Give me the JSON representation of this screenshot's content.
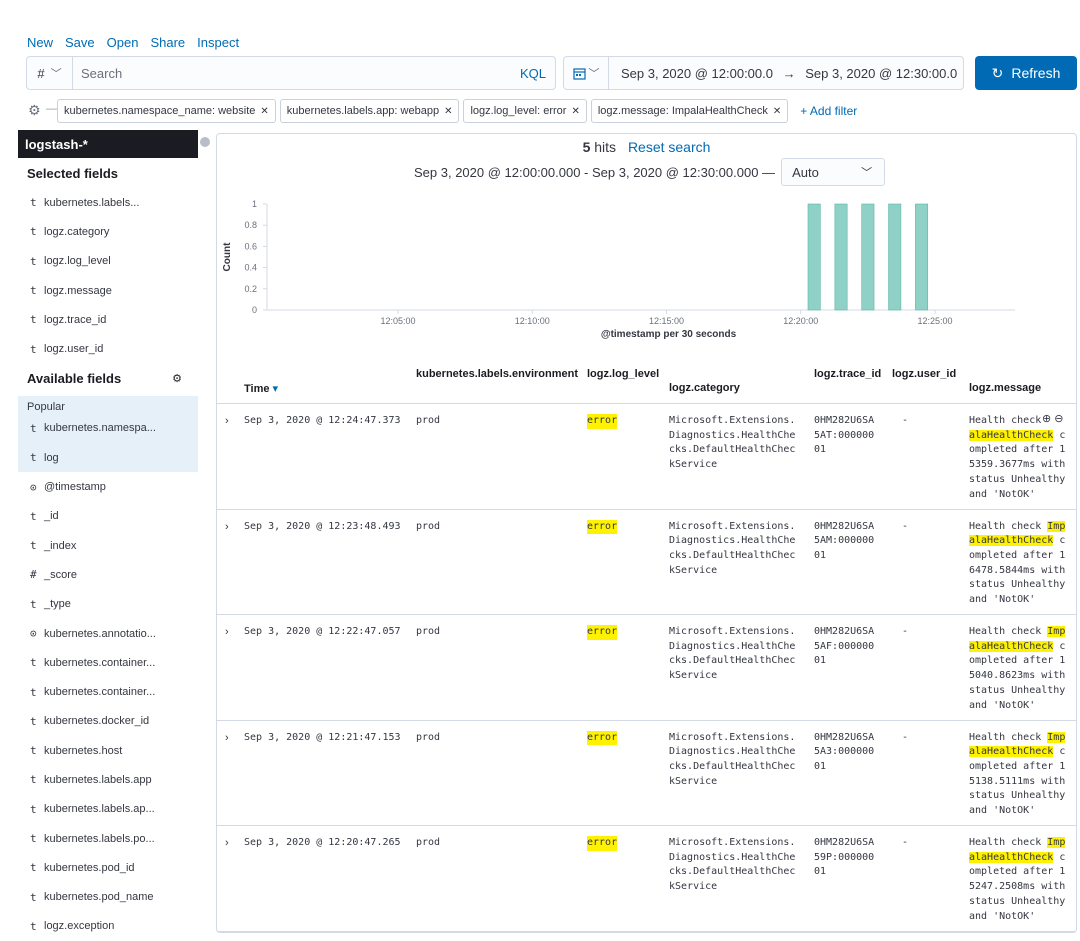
{
  "topnav": [
    "New",
    "Save",
    "Open",
    "Share",
    "Inspect"
  ],
  "search": {
    "lang_symbol": "#",
    "placeholder": "Search",
    "kql": "KQL"
  },
  "date_range": {
    "start": "Sep 3, 2020 @ 12:00:00.0",
    "arrow": "→",
    "end": "Sep 3, 2020 @ 12:30:00.0"
  },
  "refresh_label": "Refresh",
  "filters": [
    "kubernetes.namespace_name: website",
    "kubernetes.labels.app: webapp",
    "logz.log_level: error",
    "logz.message: ImpalaHealthCheck"
  ],
  "add_filter": "+ Add filter",
  "sidebar": {
    "index_pattern": "logstash-*",
    "selected_title": "Selected fields",
    "selected": [
      {
        "type": "t",
        "name": "kubernetes.labels..."
      },
      {
        "type": "t",
        "name": "logz.category"
      },
      {
        "type": "t",
        "name": "logz.log_level"
      },
      {
        "type": "t",
        "name": "logz.message"
      },
      {
        "type": "t",
        "name": "logz.trace_id"
      },
      {
        "type": "t",
        "name": "logz.user_id"
      }
    ],
    "available_title": "Available fields",
    "popular_label": "Popular",
    "popular": [
      {
        "type": "t",
        "name": "kubernetes.namespa..."
      },
      {
        "type": "t",
        "name": "log"
      }
    ],
    "available": [
      {
        "type": "⊙",
        "name": "@timestamp"
      },
      {
        "type": "t",
        "name": "_id"
      },
      {
        "type": "t",
        "name": "_index"
      },
      {
        "type": "#",
        "name": "_score"
      },
      {
        "type": "t",
        "name": "_type"
      },
      {
        "type": "⊙",
        "name": "kubernetes.annotatio..."
      },
      {
        "type": "t",
        "name": "kubernetes.container..."
      },
      {
        "type": "t",
        "name": "kubernetes.container..."
      },
      {
        "type": "t",
        "name": "kubernetes.docker_id"
      },
      {
        "type": "t",
        "name": "kubernetes.host"
      },
      {
        "type": "t",
        "name": "kubernetes.labels.app"
      },
      {
        "type": "t",
        "name": "kubernetes.labels.ap..."
      },
      {
        "type": "t",
        "name": "kubernetes.labels.po..."
      },
      {
        "type": "t",
        "name": "kubernetes.pod_id"
      },
      {
        "type": "t",
        "name": "kubernetes.pod_name"
      },
      {
        "type": "t",
        "name": "logz.exception"
      }
    ]
  },
  "hits": {
    "count": "5",
    "label": "hits",
    "reset": "Reset search"
  },
  "interval": {
    "range_text": "Sep 3, 2020 @ 12:00:00.000 - Sep 3, 2020 @ 12:30:00.000 —",
    "selected": "Auto"
  },
  "chart_data": {
    "type": "bar",
    "ylabel": "Count",
    "xlabel": "@timestamp per 30 seconds",
    "y_ticks": [
      "0",
      "0.2",
      "0.4",
      "0.6",
      "0.8",
      "1"
    ],
    "ylim": [
      0,
      1
    ],
    "x_ticks": [
      "12:05:00",
      "12:10:00",
      "12:15:00",
      "12:20:00",
      "12:25:00"
    ],
    "x_range_minutes": [
      0,
      30
    ],
    "bar_color": "#8fd1c6",
    "points": [
      {
        "minute": 20.5,
        "value": 1
      },
      {
        "minute": 21.5,
        "value": 1
      },
      {
        "minute": 22.5,
        "value": 1
      },
      {
        "minute": 23.5,
        "value": 1
      },
      {
        "minute": 24.5,
        "value": 1
      }
    ]
  },
  "table": {
    "headers": {
      "time": "Time",
      "env": "kubernetes.labels.environment",
      "level": "logz.log_level",
      "category": "logz.category",
      "trace": "logz.trace_id",
      "user": "logz.user_id",
      "message": "logz.message"
    },
    "rows": [
      {
        "time": "Sep 3, 2020 @ 12:24:47.373",
        "env": "prod",
        "level": "error",
        "category": "Microsoft.Extensions.\nDiagnostics.HealthChe\ncks.DefaultHealthChec\nkService",
        "trace": "0HM282U6SA\n5AT:000000\n01",
        "user": "-",
        "msg_pre": "Health check ",
        "msg_hl1": "",
        "msg_hl2": "alaHealthCheck",
        "msg_post": " c\nompleted after 1\n5359.3677ms with\nstatus Unhealthy\nand 'NotOK'"
      },
      {
        "time": "Sep 3, 2020 @ 12:23:48.493",
        "env": "prod",
        "level": "error",
        "category": "Microsoft.Extensions.\nDiagnostics.HealthChe\ncks.DefaultHealthChec\nkService",
        "trace": "0HM282U6SA\n5AM:000000\n01",
        "user": "-",
        "msg_pre": "Health check ",
        "msg_hl1": "Imp",
        "msg_hl2": "alaHealthCheck",
        "msg_post": " c\nompleted after 1\n6478.5844ms with\nstatus Unhealthy\nand 'NotOK'"
      },
      {
        "time": "Sep 3, 2020 @ 12:22:47.057",
        "env": "prod",
        "level": "error",
        "category": "Microsoft.Extensions.\nDiagnostics.HealthChe\ncks.DefaultHealthChec\nkService",
        "trace": "0HM282U6SA\n5AF:000000\n01",
        "user": "-",
        "msg_pre": "Health check ",
        "msg_hl1": "Imp",
        "msg_hl2": "alaHealthCheck",
        "msg_post": " c\nompleted after 1\n5040.8623ms with\nstatus Unhealthy\nand 'NotOK'"
      },
      {
        "time": "Sep 3, 2020 @ 12:21:47.153",
        "env": "prod",
        "level": "error",
        "category": "Microsoft.Extensions.\nDiagnostics.HealthChe\ncks.DefaultHealthChec\nkService",
        "trace": "0HM282U6SA\n5A3:000000\n01",
        "user": "-",
        "msg_pre": "Health check ",
        "msg_hl1": "Imp",
        "msg_hl2": "alaHealthCheck",
        "msg_post": " c\nompleted after 1\n5138.5111ms with\nstatus Unhealthy\nand 'NotOK'"
      },
      {
        "time": "Sep 3, 2020 @ 12:20:47.265",
        "env": "prod",
        "level": "error",
        "category": "Microsoft.Extensions.\nDiagnostics.HealthChe\ncks.DefaultHealthChec\nkService",
        "trace": "0HM282U6SA\n59P:000000\n01",
        "user": "-",
        "msg_pre": "Health check ",
        "msg_hl1": "Imp",
        "msg_hl2": "alaHealthCheck",
        "msg_post": " c\nompleted after 1\n5247.2508ms with\nstatus Unhealthy\nand 'NotOK'"
      }
    ]
  }
}
